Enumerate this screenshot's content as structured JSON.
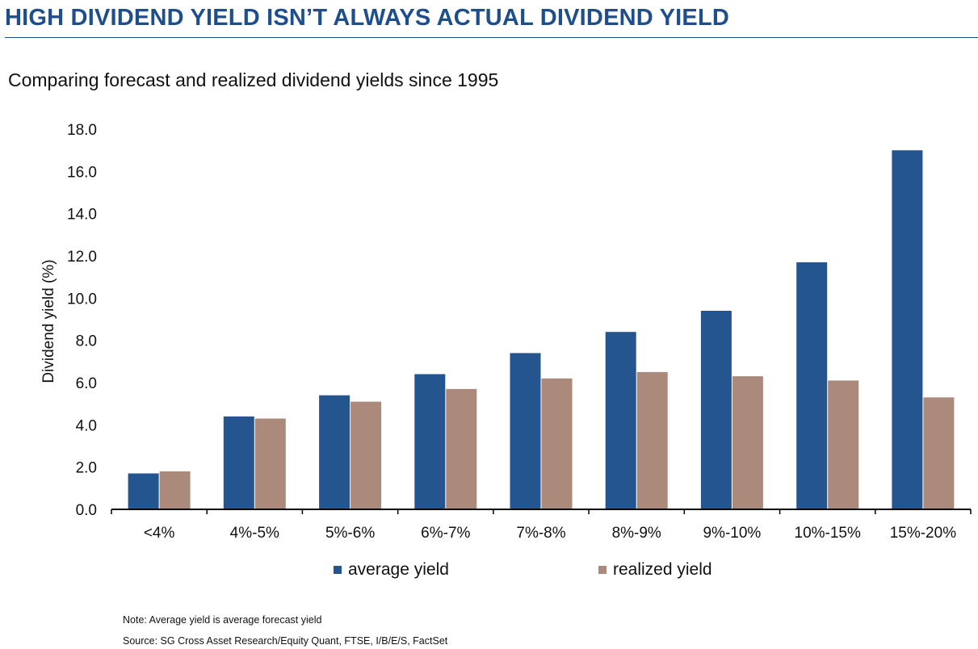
{
  "header": {
    "title": "HIGH DIVIDEND YIELD ISN’T ALWAYS ACTUAL DIVIDEND YIELD",
    "subtitle": "Comparing forecast and realized dividend yields since 1995"
  },
  "footer": {
    "note": "Note: Average yield is average forecast yield",
    "source": "Source: SG Cross Asset Research/Equity Quant, FTSE, I/B/E/S, FactSet"
  },
  "colors": {
    "title": "#1f4e8c",
    "average": "#24558f",
    "realized": "#ab8a7b",
    "axis": "#000000"
  },
  "chart_data": {
    "type": "bar",
    "title": "",
    "xlabel": "",
    "ylabel": "Dividend yield (%)",
    "ylim": [
      0,
      18
    ],
    "ytick_step": 2,
    "ytick_labels": [
      "0.0",
      "2.0",
      "4.0",
      "6.0",
      "8.0",
      "10.0",
      "12.0",
      "14.0",
      "16.0",
      "18.0"
    ],
    "grid": false,
    "legend_position": "bottom",
    "categories": [
      "<4%",
      "4%-5%",
      "5%-6%",
      "6%-7%",
      "7%-8%",
      "8%-9%",
      "9%-10%",
      "10%-15%",
      "15%-20%"
    ],
    "series": [
      {
        "name": "average yield",
        "color": "#24558f",
        "values": [
          1.7,
          4.4,
          5.4,
          6.4,
          7.4,
          8.4,
          9.4,
          11.7,
          17.0
        ]
      },
      {
        "name": "realized yield",
        "color": "#ab8a7b",
        "values": [
          1.8,
          4.3,
          5.1,
          5.7,
          6.2,
          6.5,
          6.3,
          6.1,
          5.3
        ]
      }
    ]
  }
}
